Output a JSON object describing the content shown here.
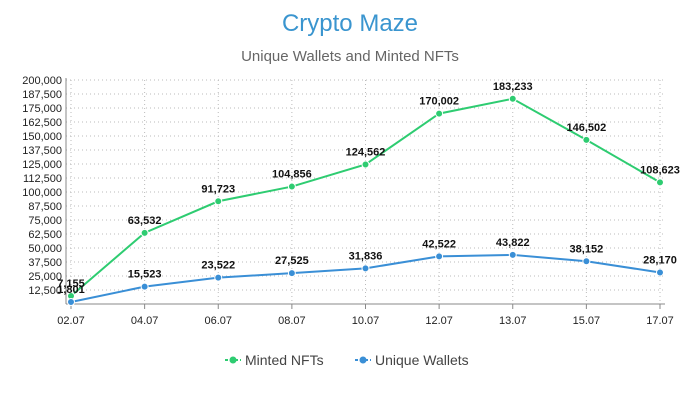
{
  "chart_data": {
    "type": "line",
    "title": "Crypto Maze",
    "subtitle": "Unique Wallets and Minted NFTs",
    "categories": [
      "02.07",
      "04.07",
      "06.07",
      "08.07",
      "10.07",
      "12.07",
      "13.07",
      "15.07",
      "17.07"
    ],
    "ylim": [
      0,
      200000
    ],
    "yticks": [
      12500,
      25000,
      37500,
      50000,
      62500,
      75000,
      87500,
      100000,
      112500,
      125000,
      137500,
      150000,
      162500,
      175000,
      187500,
      200000
    ],
    "ytick_labels": [
      "12,500",
      "25,000",
      "37,500",
      "50,000",
      "62,500",
      "75,000",
      "87,500",
      "100,000",
      "112,500",
      "125,000",
      "137,500",
      "150,000",
      "162,500",
      "175,000",
      "187,500",
      "200,000"
    ],
    "grid": true,
    "legend_position": "bottom",
    "series": [
      {
        "name": "Minted NFTs",
        "color": "#2ecc71",
        "values": [
          7155,
          63532,
          91723,
          104856,
          124562,
          170002,
          183233,
          146502,
          108623
        ],
        "labels": [
          "7,155",
          "63,532",
          "91,723",
          "104,856",
          "124,562",
          "170,002",
          "183,233",
          "146,502",
          "108,623"
        ]
      },
      {
        "name": "Unique Wallets",
        "color": "#3a8fd6",
        "values": [
          1801,
          15523,
          23522,
          27525,
          31836,
          42522,
          43822,
          38152,
          28170
        ],
        "labels": [
          "1,801",
          "15,523",
          "23,522",
          "27,525",
          "31,836",
          "42,522",
          "43,822",
          "38,152",
          "28,170"
        ]
      }
    ]
  }
}
